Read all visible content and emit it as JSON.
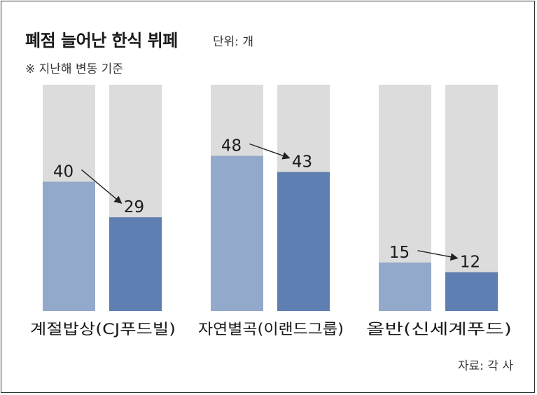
{
  "header": {
    "title": "폐점 늘어난 한식 뷔페",
    "unit": "단위: 개",
    "note": "※ 지난해 변동 기준"
  },
  "footer": {
    "source": "자료: 각 사"
  },
  "colors": {
    "background_bar": "#dcdcdc",
    "before_bar": "#93a9cb",
    "after_bar": "#5f7eb1",
    "arrow": "#222222"
  },
  "chart_data": {
    "type": "bar",
    "title": "폐점 늘어난 한식 뷔페",
    "unit": "단위: 개",
    "ylim": [
      0,
      70
    ],
    "grid": false,
    "legend": "none",
    "groups": [
      {
        "label": "계절밥상(CJ푸드빌)",
        "values": [
          40,
          29
        ]
      },
      {
        "label": "자연별곡(이랜드그룹)",
        "values": [
          48,
          43
        ]
      },
      {
        "label": "올반(신세계푸드)",
        "values": [
          15,
          12
        ]
      }
    ]
  }
}
